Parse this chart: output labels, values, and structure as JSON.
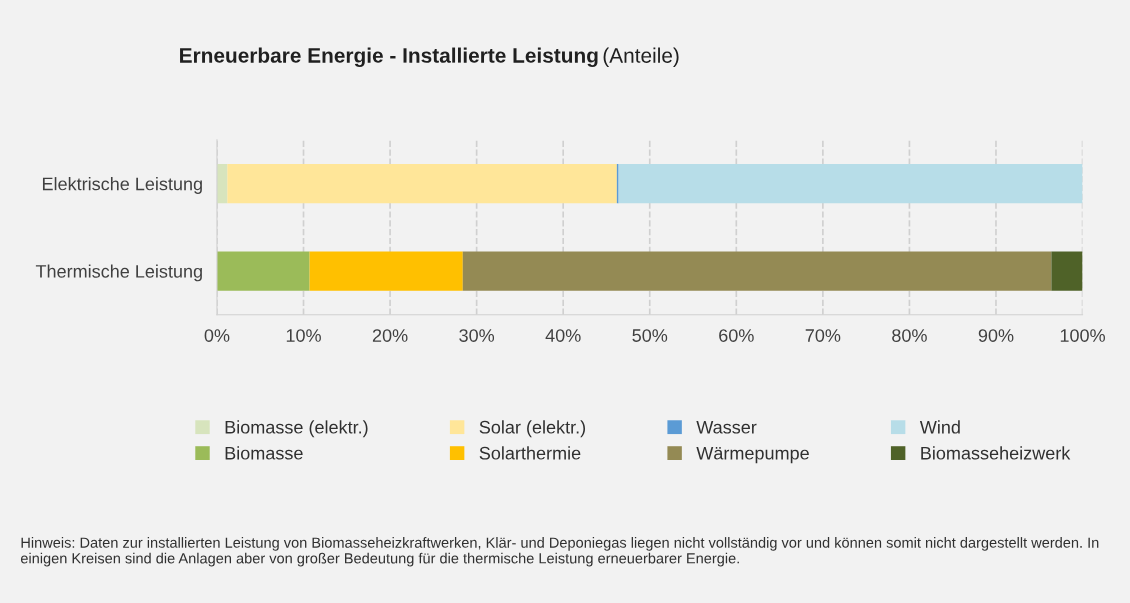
{
  "chart_data": {
    "type": "bar",
    "orientation": "horizontal",
    "stacked": true,
    "title": "Erneuerbare Energie - Installierte Leistung",
    "subtitle": "(Anteile)",
    "categories": [
      "Elektrische Leistung",
      "Thermische Leistung"
    ],
    "series": [
      {
        "name": "Biomasse (elektr.)",
        "color": "#d7e4bd",
        "values": [
          1.2,
          null
        ]
      },
      {
        "name": "Solar (elektr.)",
        "color": "#ffe699",
        "values": [
          45.0,
          null
        ]
      },
      {
        "name": "Wasser",
        "color": "#5b9bd5",
        "values": [
          0.2,
          null
        ]
      },
      {
        "name": "Wind",
        "color": "#b7dde8",
        "values": [
          53.6,
          null
        ]
      },
      {
        "name": "Biomasse",
        "color": "#9bbb59",
        "values": [
          null,
          10.7
        ]
      },
      {
        "name": "Solarthermie",
        "color": "#ffc000",
        "values": [
          null,
          17.7
        ]
      },
      {
        "name": "Wärmepumpe",
        "color": "#948a54",
        "values": [
          null,
          68.0
        ]
      },
      {
        "name": "Biomasseheizwerk",
        "color": "#4f6228",
        "values": [
          null,
          3.6
        ]
      }
    ],
    "xlim": [
      0,
      100
    ],
    "xticks": [
      {
        "value": 0,
        "label": "0%"
      },
      {
        "value": 10,
        "label": "10%"
      },
      {
        "value": 20,
        "label": "20%"
      },
      {
        "value": 30,
        "label": "30%"
      },
      {
        "value": 40,
        "label": "40%"
      },
      {
        "value": 50,
        "label": "50%"
      },
      {
        "value": 60,
        "label": "60%"
      },
      {
        "value": 70,
        "label": "70%"
      },
      {
        "value": 80,
        "label": "80%"
      },
      {
        "value": 90,
        "label": "90%"
      },
      {
        "value": 100,
        "label": "100%"
      }
    ],
    "grid": "x",
    "legend": "bottom",
    "annotations": [
      "Hinweis: Daten zur installierten Leistung von Biomasseheizkraftwerken, Klär- und Deponiegas liegen nicht vollständig vor und können somit nicht dargestellt werden. In einigen Kreisen sind die Anlagen aber von großer Bedeutung für die thermische Leistung erneuerbarer Energie."
    ]
  }
}
